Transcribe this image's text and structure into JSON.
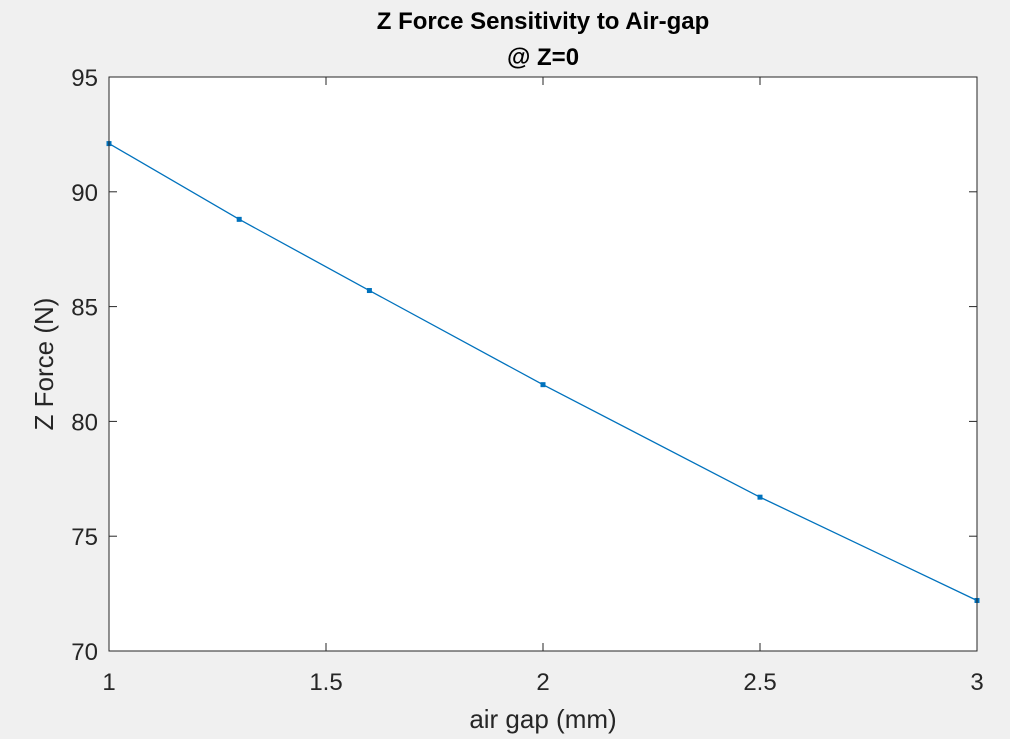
{
  "chart_data": {
    "type": "line",
    "title_lines": [
      "Z Force Sensitivity to Air-gap",
      "@ Z=0"
    ],
    "xlabel": "air gap (mm)",
    "ylabel": "Z Force (N)",
    "xlim": [
      1,
      3
    ],
    "ylim": [
      70,
      95
    ],
    "xticks": [
      1,
      1.5,
      2,
      2.5,
      3
    ],
    "xtick_labels": [
      "1",
      "1.5",
      "2",
      "2.5",
      "3"
    ],
    "yticks": [
      70,
      75,
      80,
      85,
      90,
      95
    ],
    "ytick_labels": [
      "70",
      "75",
      "80",
      "85",
      "90",
      "95"
    ],
    "grid": false,
    "series": [
      {
        "color": "#0072bd",
        "marker": "square",
        "x": [
          1,
          1.3,
          1.6,
          2,
          2.5,
          3
        ],
        "y": [
          92.1,
          88.8,
          85.7,
          81.6,
          76.7,
          72.2
        ]
      }
    ]
  }
}
